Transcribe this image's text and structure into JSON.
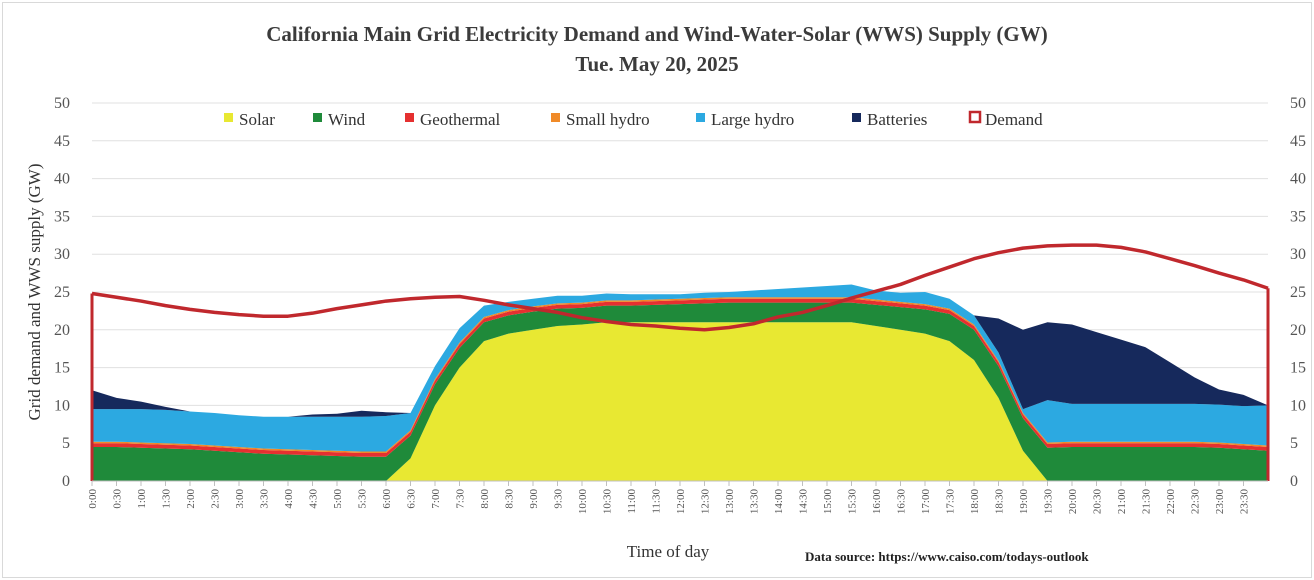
{
  "chart_data": {
    "type": "area",
    "title": "California Main Grid Electricity Demand and Wind-Water-Solar (WWS) Supply (GW)",
    "subtitle": "Tue. May 20, 2025",
    "xlabel": "Time of day",
    "ylabel": "Grid demand and WWS supply (GW)",
    "ylim": [
      0,
      50
    ],
    "yticks": [
      "0",
      "5",
      "10",
      "15",
      "20",
      "25",
      "30",
      "35",
      "40",
      "45",
      "50"
    ],
    "xticks": [
      "0:00",
      "0:30",
      "1:00",
      "1:30",
      "2:00",
      "2:30",
      "3:00",
      "3:30",
      "4:00",
      "4:30",
      "5:00",
      "5:30",
      "6:00",
      "6:30",
      "7:00",
      "7:30",
      "8:00",
      "8:30",
      "9:00",
      "9:30",
      "10:00",
      "10:30",
      "11:00",
      "11:30",
      "12:00",
      "12:30",
      "13:00",
      "13:30",
      "14:00",
      "14:30",
      "15:00",
      "15:30",
      "16:00",
      "16:30",
      "17:00",
      "17:30",
      "18:00",
      "18:30",
      "19:00",
      "19:30",
      "20:00",
      "20:30",
      "21:00",
      "21:30",
      "22:00",
      "22:30",
      "23:00",
      "23:30"
    ],
    "grid": "horizontal",
    "legend": "top",
    "source": "Data source: https://www.caiso.com/todays-outlook",
    "x_hours": [
      0,
      0.5,
      1,
      1.5,
      2,
      2.5,
      3,
      3.5,
      4,
      4.5,
      5,
      5.5,
      6,
      6.5,
      7,
      7.5,
      8,
      8.5,
      9,
      9.5,
      10,
      10.5,
      11,
      11.5,
      12,
      12.5,
      13,
      13.5,
      14,
      14.5,
      15,
      15.5,
      16,
      16.5,
      17,
      17.5,
      18,
      18.5,
      19,
      19.5,
      20,
      20.5,
      21,
      21.5,
      22,
      22.5,
      23,
      23.5,
      24
    ],
    "series": [
      {
        "name": "Solar",
        "color": "#e8e832",
        "values": [
          0,
          0,
          0,
          0,
          0,
          0,
          0,
          0,
          0,
          0,
          0,
          0,
          0,
          3,
          10,
          15,
          18.5,
          19.5,
          20,
          20.5,
          20.7,
          21,
          21,
          21,
          21,
          21,
          21,
          21,
          21,
          21,
          21,
          21,
          20.5,
          20,
          19.5,
          18.5,
          16,
          11,
          4,
          0,
          0,
          0,
          0,
          0,
          0,
          0,
          0,
          0,
          0
        ]
      },
      {
        "name": "Wind",
        "color": "#1f8a3a",
        "values": [
          4.5,
          4.5,
          4.4,
          4.3,
          4.2,
          4,
          3.8,
          3.6,
          3.5,
          3.4,
          3.3,
          3.2,
          3.2,
          3,
          2.8,
          2.6,
          2.5,
          2.4,
          2.4,
          2.3,
          2.2,
          2.2,
          2.2,
          2.3,
          2.4,
          2.5,
          2.6,
          2.6,
          2.6,
          2.6,
          2.6,
          2.6,
          2.8,
          3,
          3.2,
          3.6,
          4,
          4.2,
          4.3,
          4.4,
          4.5,
          4.5,
          4.5,
          4.5,
          4.5,
          4.5,
          4.4,
          4.2,
          4
        ]
      },
      {
        "name": "Geothermal",
        "color": "#e53030",
        "values": [
          0.5,
          0.5,
          0.5,
          0.5,
          0.5,
          0.5,
          0.5,
          0.5,
          0.5,
          0.5,
          0.5,
          0.5,
          0.5,
          0.5,
          0.5,
          0.5,
          0.5,
          0.5,
          0.5,
          0.5,
          0.5,
          0.5,
          0.5,
          0.5,
          0.5,
          0.5,
          0.5,
          0.5,
          0.5,
          0.5,
          0.5,
          0.5,
          0.5,
          0.5,
          0.5,
          0.5,
          0.5,
          0.5,
          0.5,
          0.5,
          0.5,
          0.5,
          0.5,
          0.5,
          0.5,
          0.5,
          0.5,
          0.5,
          0.5
        ]
      },
      {
        "name": "Small hydro",
        "color": "#f08a28",
        "values": [
          0.2,
          0.2,
          0.2,
          0.2,
          0.2,
          0.2,
          0.2,
          0.2,
          0.2,
          0.2,
          0.2,
          0.2,
          0.2,
          0.2,
          0.2,
          0.2,
          0.2,
          0.2,
          0.2,
          0.2,
          0.2,
          0.2,
          0.2,
          0.2,
          0.2,
          0.2,
          0.2,
          0.2,
          0.2,
          0.2,
          0.2,
          0.2,
          0.2,
          0.2,
          0.2,
          0.2,
          0.2,
          0.2,
          0.2,
          0.2,
          0.2,
          0.2,
          0.2,
          0.2,
          0.2,
          0.2,
          0.2,
          0.2,
          0.2
        ]
      },
      {
        "name": "Large hydro",
        "color": "#2ca9e1",
        "values": [
          4.3,
          4.3,
          4.4,
          4.4,
          4.3,
          4.3,
          4.2,
          4.2,
          4.3,
          4.4,
          4.5,
          4.6,
          4.7,
          2.3,
          1.7,
          1.9,
          1.5,
          1.1,
          1,
          1,
          0.9,
          0.9,
          0.8,
          0.7,
          0.6,
          0.7,
          0.7,
          0.9,
          1.1,
          1.3,
          1.5,
          1.7,
          1.2,
          1.2,
          1.6,
          1.3,
          1.2,
          1.1,
          0.5,
          5.6,
          5.0,
          5.0,
          5.0,
          5.0,
          5.0,
          5.0,
          5.0,
          5.0,
          5.3
        ]
      },
      {
        "name": "Batteries",
        "color": "#16295c",
        "values": [
          2.5,
          1.5,
          1,
          0.4,
          0,
          0,
          0,
          0,
          0,
          0.3,
          0.4,
          0.8,
          0.5,
          0,
          0,
          0,
          0,
          0,
          0,
          0,
          0,
          0,
          0,
          0,
          0,
          0,
          0,
          0,
          0,
          0,
          0,
          0,
          0,
          0,
          0,
          0,
          0,
          4.5,
          10.5,
          10.3,
          10.5,
          9.5,
          8.5,
          7.5,
          5.5,
          3.5,
          2,
          1.5,
          0
        ]
      },
      {
        "name": "Demand",
        "color": "#c0282d",
        "type": "line",
        "values": [
          24.8,
          24.3,
          23.8,
          23.2,
          22.7,
          22.3,
          22,
          21.8,
          21.8,
          22.2,
          22.8,
          23.3,
          23.8,
          24.1,
          24.3,
          24.4,
          23.9,
          23.3,
          22.8,
          22.3,
          21.6,
          21.1,
          20.7,
          20.5,
          20.2,
          20,
          20.3,
          20.8,
          21.7,
          22.3,
          23.2,
          24.2,
          25.1,
          26,
          27.2,
          28.3,
          29.4,
          30.2,
          30.8,
          31.1,
          31.2,
          31.2,
          30.9,
          30.3,
          29.4,
          28.5,
          27.5,
          26.6,
          25.5
        ]
      }
    ]
  }
}
